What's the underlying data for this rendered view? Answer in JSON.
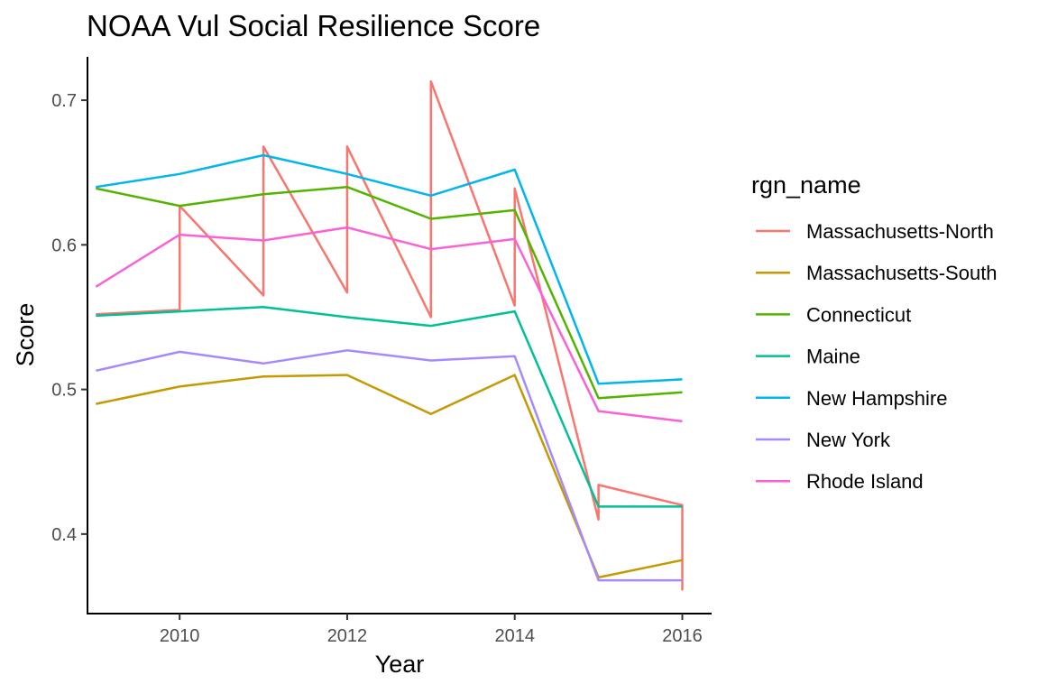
{
  "chart_data": {
    "type": "line",
    "title": "NOAA Vul Social Resilience Score",
    "xlabel": "Year",
    "ylabel": "Score",
    "xlim": [
      2008.9,
      2016.35
    ],
    "ylim": [
      0.345,
      0.73
    ],
    "xticks": [
      2010,
      2012,
      2014,
      2016
    ],
    "yticks": [
      0.4,
      0.5,
      0.6,
      0.7
    ],
    "xtick_labels": [
      "2010",
      "2012",
      "2014",
      "2016"
    ],
    "ytick_labels": [
      "0.4",
      "0.5",
      "0.6",
      "0.7"
    ],
    "grid": false,
    "legend": {
      "title": "rgn_name",
      "position": "right"
    },
    "series": [
      {
        "name": "Massachusetts-North",
        "color": "#F8766D",
        "points": [
          [
            2009,
            0.552
          ],
          [
            2010,
            0.555
          ],
          [
            2010,
            0.627
          ],
          [
            2011,
            0.565
          ],
          [
            2011,
            0.668
          ],
          [
            2012,
            0.567
          ],
          [
            2012,
            0.668
          ],
          [
            2013,
            0.55
          ],
          [
            2013,
            0.713
          ],
          [
            2014,
            0.558
          ],
          [
            2014,
            0.639
          ],
          [
            2015,
            0.41
          ],
          [
            2015,
            0.434
          ],
          [
            2016,
            0.42
          ],
          [
            2016,
            0.361
          ]
        ]
      },
      {
        "name": "Massachusetts-South",
        "color": "#C49A00",
        "points": [
          [
            2009,
            0.49
          ],
          [
            2010,
            0.502
          ],
          [
            2011,
            0.509
          ],
          [
            2012,
            0.51
          ],
          [
            2013,
            0.483
          ],
          [
            2014,
            0.51
          ],
          [
            2015,
            0.37
          ],
          [
            2016,
            0.382
          ]
        ]
      },
      {
        "name": "Connecticut",
        "color": "#53B400",
        "points": [
          [
            2009,
            0.639
          ],
          [
            2010,
            0.627
          ],
          [
            2011,
            0.635
          ],
          [
            2012,
            0.64
          ],
          [
            2013,
            0.618
          ],
          [
            2014,
            0.624
          ],
          [
            2015,
            0.494
          ],
          [
            2016,
            0.498
          ]
        ]
      },
      {
        "name": "Maine",
        "color": "#00C094",
        "points": [
          [
            2009,
            0.551
          ],
          [
            2010,
            0.554
          ],
          [
            2011,
            0.557
          ],
          [
            2012,
            0.55
          ],
          [
            2013,
            0.544
          ],
          [
            2014,
            0.554
          ],
          [
            2015,
            0.419
          ],
          [
            2016,
            0.419
          ]
        ]
      },
      {
        "name": "New Hampshire",
        "color": "#00B6EB",
        "points": [
          [
            2009,
            0.64
          ],
          [
            2010,
            0.649
          ],
          [
            2011,
            0.662
          ],
          [
            2012,
            0.649
          ],
          [
            2013,
            0.634
          ],
          [
            2014,
            0.652
          ],
          [
            2015,
            0.504
          ],
          [
            2016,
            0.507
          ]
        ]
      },
      {
        "name": "New York",
        "color": "#A58AFF",
        "points": [
          [
            2009,
            0.513
          ],
          [
            2010,
            0.526
          ],
          [
            2011,
            0.518
          ],
          [
            2012,
            0.527
          ],
          [
            2013,
            0.52
          ],
          [
            2014,
            0.523
          ],
          [
            2015,
            0.368
          ],
          [
            2016,
            0.368
          ]
        ]
      },
      {
        "name": "Rhode Island",
        "color": "#FB61D7",
        "points": [
          [
            2009,
            0.571
          ],
          [
            2010,
            0.607
          ],
          [
            2011,
            0.603
          ],
          [
            2012,
            0.612
          ],
          [
            2013,
            0.597
          ],
          [
            2014,
            0.604
          ],
          [
            2015,
            0.485
          ],
          [
            2016,
            0.478
          ]
        ]
      }
    ]
  }
}
